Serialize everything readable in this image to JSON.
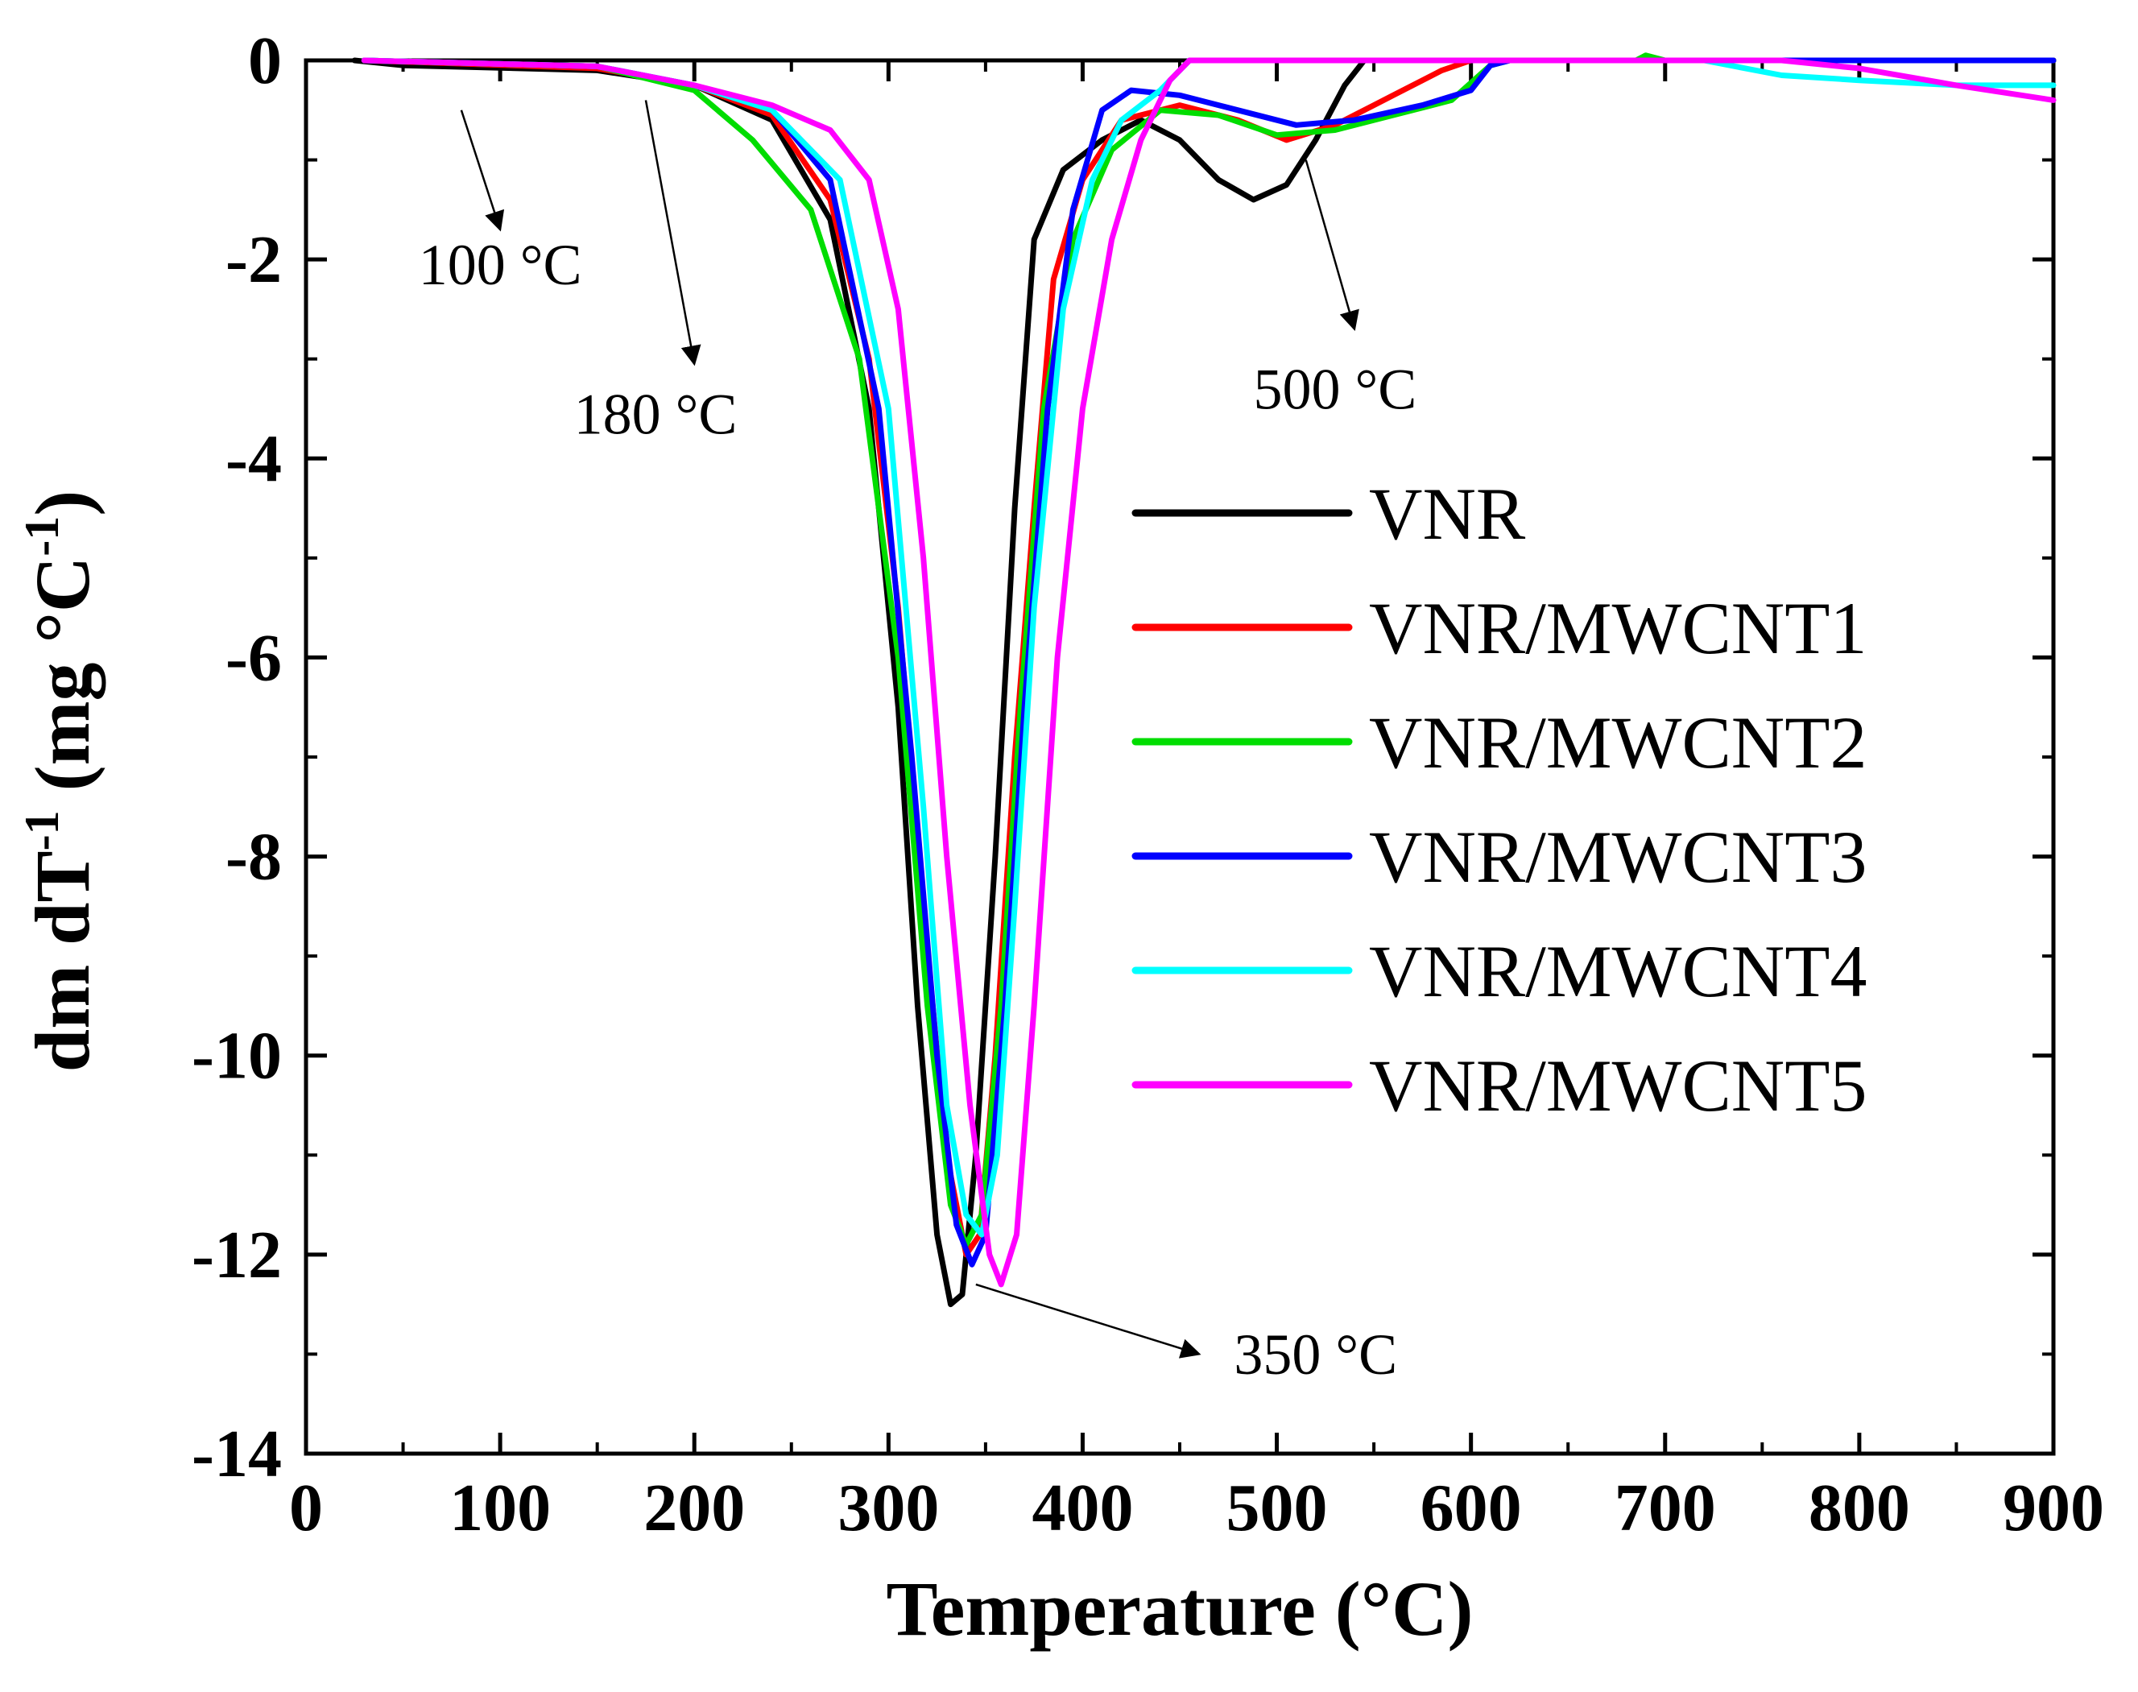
{
  "chart_data": {
    "type": "line",
    "title": "",
    "xlabel": "Temperature (°C)",
    "ylabel_main": "dm dT",
    "ylabel_sup": "-1",
    "ylabel_unit": " (mg °C",
    "ylabel_unit_sup": "-1",
    "ylabel_close": ")",
    "xlim": [
      0,
      900
    ],
    "ylim": [
      -14,
      0
    ],
    "xticks": [
      0,
      100,
      200,
      300,
      400,
      500,
      600,
      700,
      800,
      900
    ],
    "yticks": [
      0,
      -2,
      -4,
      -6,
      -8,
      -10,
      -12,
      -14
    ],
    "grid": false,
    "legend_position": "center-right",
    "series": [
      {
        "name": "VNR",
        "color": "#000000",
        "points": [
          [
            25,
            0
          ],
          [
            50,
            -0.05
          ],
          [
            150,
            -0.1
          ],
          [
            200,
            -0.25
          ],
          [
            240,
            -0.6
          ],
          [
            270,
            -1.6
          ],
          [
            290,
            -3.5
          ],
          [
            305,
            -6.5
          ],
          [
            315,
            -9.5
          ],
          [
            325,
            -11.8
          ],
          [
            332,
            -12.5
          ],
          [
            338,
            -12.4
          ],
          [
            345,
            -11.0
          ],
          [
            355,
            -8.0
          ],
          [
            365,
            -4.5
          ],
          [
            375,
            -1.8
          ],
          [
            390,
            -1.1
          ],
          [
            410,
            -0.8
          ],
          [
            430,
            -0.6
          ],
          [
            450,
            -0.8
          ],
          [
            470,
            -1.2
          ],
          [
            488,
            -1.4
          ],
          [
            505,
            -1.25
          ],
          [
            520,
            -0.8
          ],
          [
            535,
            -0.25
          ],
          [
            545,
            0
          ],
          [
            900,
            0
          ]
        ]
      },
      {
        "name": "VNR/MWCNT1",
        "color": "#ff0000",
        "points": [
          [
            30,
            0
          ],
          [
            150,
            -0.08
          ],
          [
            200,
            -0.25
          ],
          [
            240,
            -0.55
          ],
          [
            270,
            -1.4
          ],
          [
            290,
            -3.0
          ],
          [
            305,
            -5.5
          ],
          [
            318,
            -8.5
          ],
          [
            330,
            -11.0
          ],
          [
            340,
            -12.0
          ],
          [
            347,
            -11.8
          ],
          [
            355,
            -10.0
          ],
          [
            365,
            -7.0
          ],
          [
            375,
            -4.5
          ],
          [
            385,
            -2.2
          ],
          [
            400,
            -1.2
          ],
          [
            420,
            -0.6
          ],
          [
            450,
            -0.45
          ],
          [
            480,
            -0.6
          ],
          [
            505,
            -0.8
          ],
          [
            530,
            -0.65
          ],
          [
            560,
            -0.35
          ],
          [
            585,
            -0.1
          ],
          [
            600,
            0
          ],
          [
            900,
            0
          ]
        ]
      },
      {
        "name": "VNR/MWCNT2",
        "color": "#00dd00",
        "points": [
          [
            30,
            0
          ],
          [
            150,
            -0.06
          ],
          [
            200,
            -0.3
          ],
          [
            230,
            -0.8
          ],
          [
            260,
            -1.5
          ],
          [
            285,
            -3.0
          ],
          [
            305,
            -6.0
          ],
          [
            320,
            -9.5
          ],
          [
            332,
            -11.5
          ],
          [
            340,
            -11.9
          ],
          [
            348,
            -11.6
          ],
          [
            358,
            -9.5
          ],
          [
            368,
            -6.5
          ],
          [
            380,
            -3.5
          ],
          [
            395,
            -1.8
          ],
          [
            415,
            -0.9
          ],
          [
            440,
            -0.5
          ],
          [
            470,
            -0.55
          ],
          [
            500,
            -0.75
          ],
          [
            530,
            -0.7
          ],
          [
            560,
            -0.55
          ],
          [
            590,
            -0.4
          ],
          [
            610,
            -0.05
          ],
          [
            620,
            0
          ],
          [
            685,
            0
          ],
          [
            690,
            0.05
          ],
          [
            700,
            0
          ],
          [
            900,
            0
          ]
        ]
      },
      {
        "name": "VNR/MWCNT3",
        "color": "#0000ff",
        "points": [
          [
            30,
            0
          ],
          [
            150,
            -0.06
          ],
          [
            200,
            -0.25
          ],
          [
            240,
            -0.5
          ],
          [
            270,
            -1.2
          ],
          [
            295,
            -3.5
          ],
          [
            312,
            -7.0
          ],
          [
            325,
            -10.0
          ],
          [
            335,
            -11.7
          ],
          [
            343,
            -12.1
          ],
          [
            350,
            -11.8
          ],
          [
            360,
            -9.5
          ],
          [
            370,
            -6.5
          ],
          [
            382,
            -3.5
          ],
          [
            395,
            -1.5
          ],
          [
            410,
            -0.5
          ],
          [
            425,
            -0.3
          ],
          [
            450,
            -0.35
          ],
          [
            480,
            -0.5
          ],
          [
            510,
            -0.65
          ],
          [
            540,
            -0.6
          ],
          [
            575,
            -0.45
          ],
          [
            600,
            -0.3
          ],
          [
            610,
            -0.05
          ],
          [
            620,
            0
          ],
          [
            900,
            0
          ]
        ]
      },
      {
        "name": "VNR/MWCNT4",
        "color": "#00ffff",
        "points": [
          [
            30,
            0
          ],
          [
            150,
            -0.06
          ],
          [
            200,
            -0.25
          ],
          [
            240,
            -0.5
          ],
          [
            275,
            -1.2
          ],
          [
            300,
            -3.5
          ],
          [
            318,
            -7.5
          ],
          [
            330,
            -10.5
          ],
          [
            340,
            -11.6
          ],
          [
            348,
            -11.8
          ],
          [
            356,
            -11.0
          ],
          [
            365,
            -8.5
          ],
          [
            375,
            -5.5
          ],
          [
            390,
            -2.5
          ],
          [
            405,
            -1.2
          ],
          [
            420,
            -0.6
          ],
          [
            440,
            -0.3
          ],
          [
            455,
            0
          ],
          [
            720,
            0
          ],
          [
            760,
            -0.15
          ],
          [
            800,
            -0.2
          ],
          [
            850,
            -0.25
          ],
          [
            900,
            -0.25
          ]
        ]
      },
      {
        "name": "VNR/MWCNT5",
        "color": "#ff00ff",
        "points": [
          [
            30,
            0
          ],
          [
            150,
            -0.06
          ],
          [
            200,
            -0.25
          ],
          [
            240,
            -0.45
          ],
          [
            270,
            -0.7
          ],
          [
            290,
            -1.2
          ],
          [
            305,
            -2.5
          ],
          [
            318,
            -5.0
          ],
          [
            330,
            -8.0
          ],
          [
            342,
            -10.5
          ],
          [
            352,
            -12.0
          ],
          [
            358,
            -12.3
          ],
          [
            366,
            -11.8
          ],
          [
            375,
            -9.5
          ],
          [
            387,
            -6.0
          ],
          [
            400,
            -3.5
          ],
          [
            415,
            -1.8
          ],
          [
            430,
            -0.8
          ],
          [
            445,
            -0.2
          ],
          [
            455,
            0
          ],
          [
            760,
            0
          ],
          [
            800,
            -0.08
          ],
          [
            850,
            -0.25
          ],
          [
            900,
            -0.4
          ]
        ]
      }
    ],
    "annotations": [
      {
        "label": "100 °C",
        "x": 100,
        "y": -2.0
      },
      {
        "label": "180 °C",
        "x": 180,
        "y": -3.5
      },
      {
        "label": "500 °C",
        "x": 500,
        "y": -3.3
      },
      {
        "label": "350 °C",
        "x": 350,
        "y": -13.0
      }
    ]
  }
}
